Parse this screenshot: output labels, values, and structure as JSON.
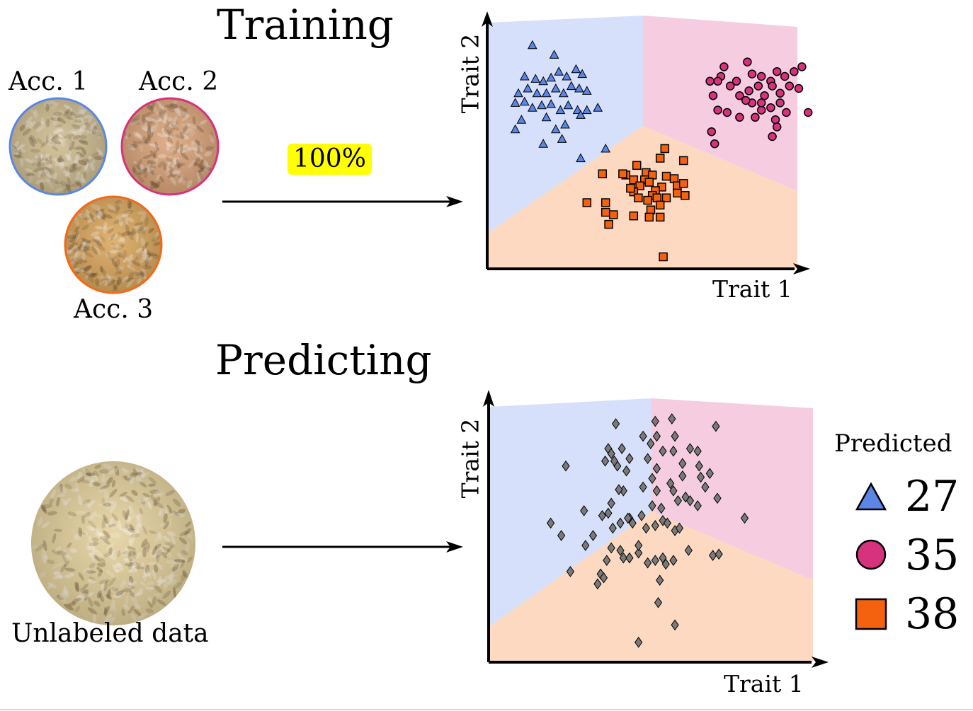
{
  "training": {
    "heading": "Training",
    "accessions": [
      {
        "label": "Acc. 1",
        "ring_color": "#5b86e5",
        "grain_color": "#cdbb8e"
      },
      {
        "label": "Acc. 2",
        "ring_color": "#d6327d",
        "grain_color": "#d9a277"
      },
      {
        "label": "Acc. 3",
        "ring_color": "#f16a1b",
        "grain_color": "#d9a55a"
      }
    ],
    "badge": "100%",
    "plot": {
      "xlabel": "Trait 1",
      "ylabel": "Trait 2"
    }
  },
  "predicting": {
    "heading": "Predicting",
    "unlabeled_label": "Unlabeled data",
    "unlabeled_grain_color": "#e2cf9a",
    "plot": {
      "xlabel": "Trait 1",
      "ylabel": "Trait 2"
    },
    "legend": {
      "title": "Predicted",
      "items": [
        {
          "class": "Acc. 1",
          "marker": "triangle",
          "color": "#5b86e5",
          "count": "27"
        },
        {
          "class": "Acc. 2",
          "marker": "circle",
          "color": "#d6327d",
          "count": "35"
        },
        {
          "class": "Acc. 3",
          "marker": "square",
          "color": "#f4620f",
          "count": "38"
        }
      ]
    }
  },
  "colors": {
    "region_blue": "#d6e0fa",
    "region_pink": "#f5cce0",
    "region_orange": "#fcd9c0",
    "diamond": "#7a7a7a"
  },
  "chart_data": [
    {
      "type": "scatter",
      "title": "Training",
      "xlabel": "Trait 1",
      "ylabel": "Trait 2",
      "series": [
        {
          "name": "Acc. 1",
          "marker": "triangle",
          "color": "#5b86e5",
          "points": [
            [
              1.45,
              9.3
            ],
            [
              2.15,
              8.9
            ],
            [
              1.2,
              8.0
            ],
            [
              1.55,
              7.9
            ],
            [
              1.8,
              7.8
            ],
            [
              2.05,
              7.95
            ],
            [
              2.3,
              8.2
            ],
            [
              2.55,
              8.0
            ],
            [
              2.85,
              8.3
            ],
            [
              3.05,
              8.1
            ],
            [
              1.0,
              7.3
            ],
            [
              1.3,
              7.5
            ],
            [
              1.6,
              7.3
            ],
            [
              1.9,
              7.3
            ],
            [
              2.2,
              7.5
            ],
            [
              2.45,
              7.3
            ],
            [
              2.7,
              7.6
            ],
            [
              2.95,
              7.5
            ],
            [
              3.2,
              7.4
            ],
            [
              0.9,
              6.9
            ],
            [
              1.2,
              6.95
            ],
            [
              1.45,
              6.7
            ],
            [
              1.75,
              6.8
            ],
            [
              2.05,
              6.85
            ],
            [
              2.35,
              6.6
            ],
            [
              2.6,
              6.8
            ],
            [
              2.9,
              6.6
            ],
            [
              3.2,
              6.6
            ],
            [
              3.55,
              6.7
            ],
            [
              1.1,
              6.2
            ],
            [
              1.9,
              6.3
            ],
            [
              2.5,
              6.0
            ],
            [
              3.0,
              6.4
            ],
            [
              0.9,
              5.8
            ],
            [
              2.2,
              5.8
            ],
            [
              1.8,
              5.2
            ],
            [
              3.8,
              5.0
            ],
            [
              2.4,
              5.4
            ],
            [
              3.0,
              4.6
            ]
          ]
        },
        {
          "name": "Acc. 2",
          "marker": "circle",
          "color": "#d6327d",
          "points": [
            [
              7.6,
              8.4
            ],
            [
              7.5,
              8.0
            ],
            [
              7.15,
              7.8
            ],
            [
              7.25,
              7.2
            ],
            [
              7.4,
              7.8
            ],
            [
              7.8,
              7.6
            ],
            [
              8.0,
              7.8
            ],
            [
              8.35,
              8.6
            ],
            [
              8.5,
              8.1
            ],
            [
              8.8,
              8.0
            ],
            [
              9.1,
              7.8
            ],
            [
              9.3,
              8.2
            ],
            [
              9.55,
              8.0
            ],
            [
              9.85,
              8.2
            ],
            [
              10.1,
              8.4
            ],
            [
              8.1,
              7.2
            ],
            [
              8.4,
              7.4
            ],
            [
              8.7,
              7.6
            ],
            [
              8.9,
              7.2
            ],
            [
              9.15,
              7.6
            ],
            [
              9.4,
              7.3
            ],
            [
              9.7,
              7.6
            ],
            [
              10.0,
              7.5
            ],
            [
              8.5,
              6.9
            ],
            [
              8.8,
              6.6
            ],
            [
              9.1,
              6.7
            ],
            [
              9.4,
              6.9
            ],
            [
              9.6,
              6.5
            ],
            [
              9.25,
              6.2
            ],
            [
              8.1,
              6.3
            ],
            [
              7.4,
              6.6
            ],
            [
              7.7,
              6.5
            ],
            [
              10.3,
              6.5
            ],
            [
              8.6,
              6.3
            ],
            [
              9.3,
              5.9
            ],
            [
              7.2,
              5.7
            ],
            [
              9.15,
              5.5
            ],
            [
              7.3,
              5.2
            ],
            [
              8.8,
              6.9
            ],
            [
              8.3,
              7.0
            ]
          ]
        },
        {
          "name": "Acc. 3",
          "marker": "square",
          "color": "#f4620f",
          "points": [
            [
              5.7,
              5.0
            ],
            [
              5.55,
              4.6
            ],
            [
              6.3,
              4.5
            ],
            [
              4.8,
              4.3
            ],
            [
              5.1,
              4.0
            ],
            [
              4.45,
              3.9
            ],
            [
              3.7,
              3.95
            ],
            [
              4.35,
              3.95
            ],
            [
              4.7,
              3.7
            ],
            [
              5.05,
              3.7
            ],
            [
              5.3,
              3.9
            ],
            [
              5.75,
              3.85
            ],
            [
              6.0,
              3.75
            ],
            [
              6.1,
              3.45
            ],
            [
              6.1,
              3.15
            ],
            [
              5.6,
              3.4
            ],
            [
              5.4,
              3.25
            ],
            [
              5.2,
              3.6
            ],
            [
              4.9,
              3.45
            ],
            [
              4.7,
              3.2
            ],
            [
              4.6,
              3.35
            ],
            [
              5.3,
              3.05
            ],
            [
              4.85,
              2.95
            ],
            [
              5.15,
              2.85
            ],
            [
              5.45,
              2.95
            ],
            [
              5.75,
              2.95
            ],
            [
              6.3,
              3.55
            ],
            [
              6.35,
              3.05
            ],
            [
              3.2,
              2.75
            ],
            [
              3.8,
              2.75
            ],
            [
              5.55,
              2.65
            ],
            [
              5.25,
              2.45
            ],
            [
              3.8,
              2.35
            ],
            [
              4.05,
              2.25
            ],
            [
              4.7,
              2.2
            ],
            [
              5.2,
              2.15
            ],
            [
              5.55,
              2.15
            ],
            [
              3.9,
              1.85
            ],
            [
              5.65,
              0.5
            ]
          ]
        }
      ]
    },
    {
      "type": "scatter",
      "title": "Predicting",
      "xlabel": "Trait 1",
      "ylabel": "Trait 2",
      "series": [
        {
          "marker": "diamond",
          "color": "#7a7a7a",
          "points": [
            [
              4.15,
              9.6
            ],
            [
              5.45,
              9.7
            ],
            [
              6.0,
              9.8
            ],
            [
              7.45,
              9.5
            ],
            [
              5.05,
              9.1
            ],
            [
              5.5,
              9.1
            ],
            [
              5.3,
              8.8
            ],
            [
              6.1,
              9.1
            ],
            [
              3.9,
              8.6
            ],
            [
              4.0,
              8.4
            ],
            [
              4.35,
              8.6
            ],
            [
              4.6,
              8.2
            ],
            [
              5.2,
              8.2
            ],
            [
              5.7,
              8.5
            ],
            [
              6.05,
              8.5
            ],
            [
              6.6,
              8.6
            ],
            [
              6.85,
              8.5
            ],
            [
              3.8,
              8.1
            ],
            [
              4.2,
              7.9
            ],
            [
              4.1,
              8.1
            ],
            [
              4.5,
              7.7
            ],
            [
              5.5,
              7.8
            ],
            [
              6.35,
              8.0
            ],
            [
              6.9,
              7.9
            ],
            [
              7.25,
              7.6
            ],
            [
              2.5,
              7.9
            ],
            [
              4.4,
              6.9
            ],
            [
              4.0,
              6.4
            ],
            [
              4.25,
              6.95
            ],
            [
              5.35,
              7.4
            ],
            [
              5.05,
              7.05
            ],
            [
              5.5,
              6.9
            ],
            [
              6.35,
              7.5
            ],
            [
              5.95,
              7.2
            ],
            [
              6.05,
              6.9
            ],
            [
              6.2,
              6.5
            ],
            [
              6.45,
              6.65
            ],
            [
              6.95,
              7.45
            ],
            [
              7.1,
              7.05
            ],
            [
              7.5,
              6.6
            ],
            [
              3.1,
              6.1
            ],
            [
              3.7,
              5.9
            ],
            [
              3.9,
              6.0
            ],
            [
              4.6,
              5.8
            ],
            [
              5.35,
              6.3
            ],
            [
              5.65,
              6.2
            ],
            [
              6.6,
              6.5
            ],
            [
              6.85,
              6.3
            ],
            [
              2.0,
              5.6
            ],
            [
              2.35,
              5.1
            ],
            [
              3.4,
              5.1
            ],
            [
              4.05,
              5.4
            ],
            [
              4.3,
              5.6
            ],
            [
              4.55,
              5.8
            ],
            [
              4.7,
              5.6
            ],
            [
              5.0,
              5.9
            ],
            [
              5.15,
              5.4
            ],
            [
              5.45,
              5.5
            ],
            [
              5.7,
              5.7
            ],
            [
              5.85,
              5.6
            ],
            [
              6.1,
              5.3
            ],
            [
              6.25,
              5.4
            ],
            [
              6.55,
              4.5
            ],
            [
              7.35,
              4.3
            ],
            [
              7.55,
              4.35
            ],
            [
              8.4,
              5.8
            ],
            [
              4.0,
              4.6
            ],
            [
              4.3,
              4.5
            ],
            [
              4.4,
              4.2
            ],
            [
              4.6,
              4.2
            ],
            [
              4.9,
              4.4
            ],
            [
              5.2,
              4.0
            ],
            [
              5.45,
              4.1
            ],
            [
              5.7,
              4.2
            ],
            [
              5.8,
              3.95
            ],
            [
              6.05,
              4.1
            ],
            [
              3.15,
              4.7
            ],
            [
              3.85,
              4.1
            ],
            [
              4.9,
              4.7
            ],
            [
              2.65,
              3.65
            ],
            [
              3.65,
              3.55
            ],
            [
              3.55,
              3.15
            ],
            [
              3.75,
              3.4
            ],
            [
              5.6,
              3.3
            ],
            [
              5.55,
              2.4
            ],
            [
              6.1,
              1.5
            ],
            [
              4.9,
              0.8
            ]
          ]
        }
      ]
    }
  ]
}
